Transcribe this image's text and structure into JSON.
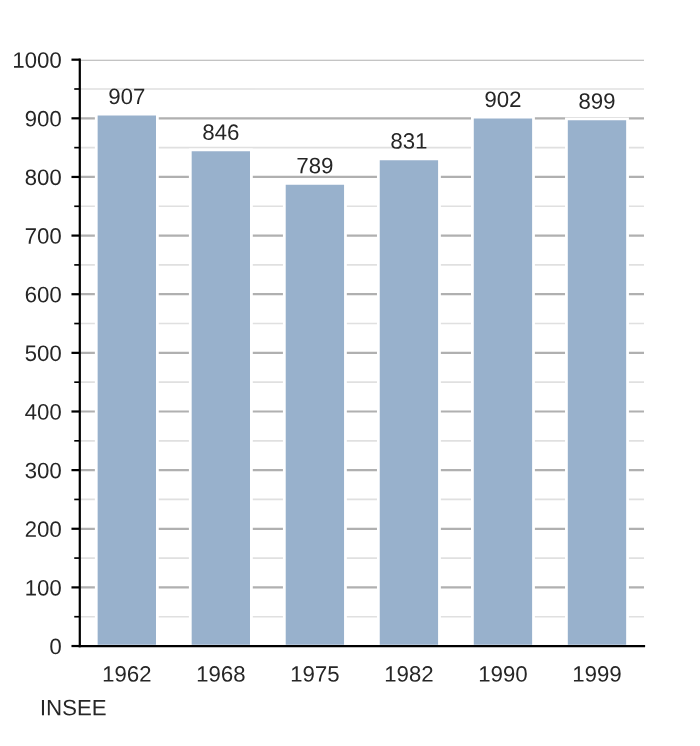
{
  "chart_data": {
    "type": "bar",
    "categories": [
      "1962",
      "1968",
      "1975",
      "1982",
      "1990",
      "1999"
    ],
    "values": [
      907,
      846,
      789,
      831,
      902,
      899
    ],
    "color": "#98b1cc",
    "ylim": [
      0,
      1000
    ],
    "yticks": [
      0,
      100,
      200,
      300,
      400,
      500,
      600,
      700,
      800,
      900,
      1000
    ],
    "grid": "y",
    "data_labels": true,
    "legend": false,
    "annotations": [
      "INSEE"
    ]
  }
}
